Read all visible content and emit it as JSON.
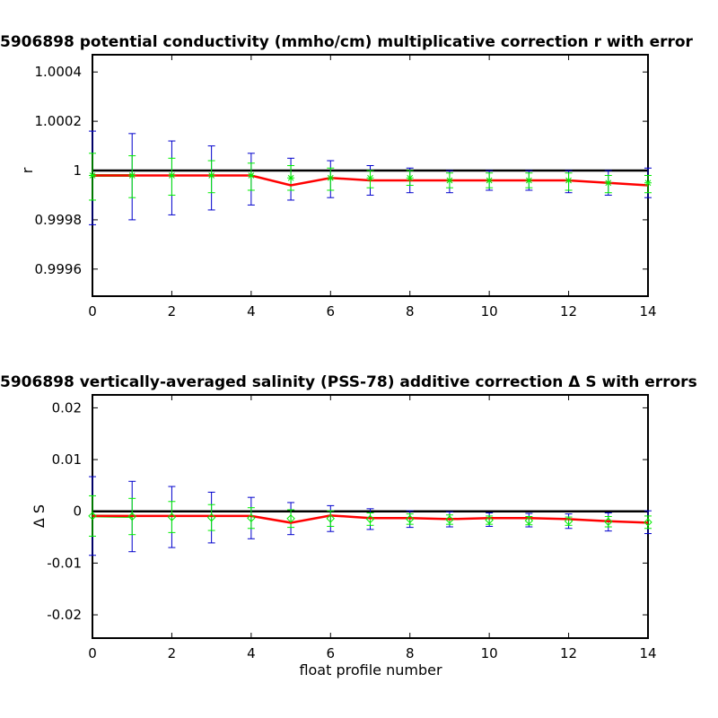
{
  "chart_data": [
    {
      "type": "line",
      "title": "5906898 potential conductivity (mmho/cm) multiplicative correction r with error",
      "xlabel": "",
      "ylabel": "r",
      "xlim": [
        0,
        14
      ],
      "ylim": [
        0.99949,
        1.00047
      ],
      "xticks": [
        "0",
        "2",
        "4",
        "6",
        "8",
        "10",
        "12",
        "14"
      ],
      "yticks": [
        "0.9996",
        "0.9998",
        "1",
        "1.0002",
        "1.0004"
      ],
      "ytick_values": [
        0.9996,
        0.9998,
        1.0,
        1.0002,
        1.0004
      ],
      "grid": false,
      "reference_line": 1.0,
      "x": [
        0,
        1,
        2,
        3,
        4,
        5,
        6,
        7,
        8,
        9,
        10,
        11,
        12,
        13,
        14
      ],
      "series": [
        {
          "role": "correction",
          "color": "#ff0000",
          "values": [
            0.99998,
            0.99998,
            0.99998,
            0.99998,
            0.99998,
            0.99994,
            0.99997,
            0.99996,
            0.99996,
            0.99996,
            0.99996,
            0.99996,
            0.99996,
            0.99995,
            0.99994
          ]
        },
        {
          "role": "fit-points",
          "color": "#00ee00",
          "marker": "asterisk",
          "values": [
            0.99998,
            0.99998,
            0.99998,
            0.99998,
            0.99998,
            0.99997,
            0.99997,
            0.99997,
            0.99997,
            0.99996,
            0.99996,
            0.99996,
            0.99996,
            0.99995,
            0.99995
          ]
        },
        {
          "role": "fit-error",
          "color": "#00ee00",
          "low": [
            0.99988,
            0.99989,
            0.9999,
            0.99991,
            0.99992,
            0.99992,
            0.99992,
            0.99993,
            0.99994,
            0.99993,
            0.99993,
            0.99993,
            0.99992,
            0.99991,
            0.99991
          ],
          "high": [
            1.00007,
            1.00006,
            1.00005,
            1.00004,
            1.00003,
            1.00002,
            1.00001,
            1.0,
            1.0,
            0.99999,
            0.99999,
            0.99999,
            0.99999,
            0.99998,
            0.99998
          ]
        },
        {
          "role": "total-error",
          "color": "#0000cc",
          "low": [
            0.99978,
            0.9998,
            0.99982,
            0.99984,
            0.99986,
            0.99988,
            0.99989,
            0.9999,
            0.99991,
            0.99991,
            0.99992,
            0.99992,
            0.99991,
            0.9999,
            0.99989
          ],
          "high": [
            1.00016,
            1.00015,
            1.00012,
            1.0001,
            1.00007,
            1.00005,
            1.00004,
            1.00002,
            1.00001,
            1.0,
            1.0,
            1.0,
            1.0,
            1.0,
            1.00001
          ]
        }
      ]
    },
    {
      "type": "line",
      "title": "5906898 vertically-averaged salinity (PSS-78) additive correction Δ S with errors",
      "xlabel": "float profile number",
      "ylabel": "Δ S",
      "xlim": [
        0,
        14
      ],
      "ylim": [
        -0.0245,
        0.0225
      ],
      "xticks": [
        "0",
        "2",
        "4",
        "6",
        "8",
        "10",
        "12",
        "14"
      ],
      "yticks": [
        "-0.02",
        "-0.01",
        "0",
        "0.01",
        "0.02"
      ],
      "ytick_values": [
        -0.02,
        -0.01,
        0,
        0.01,
        0.02
      ],
      "grid": false,
      "reference_line": 0,
      "x": [
        0,
        1,
        2,
        3,
        4,
        5,
        6,
        7,
        8,
        9,
        10,
        11,
        12,
        13,
        14
      ],
      "series": [
        {
          "role": "correction",
          "color": "#ff0000",
          "values": [
            -0.0009,
            -0.0009,
            -0.0009,
            -0.0009,
            -0.0009,
            -0.0022,
            -0.0008,
            -0.0013,
            -0.0013,
            -0.0015,
            -0.0013,
            -0.0013,
            -0.0015,
            -0.0019,
            -0.0022
          ]
        },
        {
          "role": "fit-points",
          "color": "#00ee00",
          "marker": "diamond",
          "values": [
            -0.0009,
            -0.001,
            -0.0011,
            -0.0012,
            -0.0013,
            -0.0014,
            -0.0014,
            -0.0015,
            -0.0015,
            -0.0016,
            -0.0017,
            -0.0018,
            -0.0019,
            -0.002,
            -0.0021
          ]
        },
        {
          "role": "fit-error",
          "color": "#00ee00",
          "low": [
            -0.0048,
            -0.0045,
            -0.0041,
            -0.0037,
            -0.0033,
            -0.0031,
            -0.0029,
            -0.0027,
            -0.0025,
            -0.0025,
            -0.0025,
            -0.0026,
            -0.0027,
            -0.003,
            -0.0033
          ],
          "high": [
            0.003,
            0.0025,
            0.0019,
            0.0013,
            0.0007,
            0.0003,
            0.0001,
            -0.0003,
            -0.0005,
            -0.0007,
            -0.0009,
            -0.001,
            -0.0011,
            -0.001,
            -0.0009
          ]
        },
        {
          "role": "total-error",
          "color": "#0000cc",
          "low": [
            -0.0085,
            -0.0078,
            -0.007,
            -0.0061,
            -0.0053,
            -0.0045,
            -0.0039,
            -0.0035,
            -0.0031,
            -0.003,
            -0.0029,
            -0.003,
            -0.0033,
            -0.0038,
            -0.0043
          ],
          "high": [
            0.0067,
            0.0058,
            0.0048,
            0.0037,
            0.0027,
            0.0017,
            0.0011,
            0.0005,
            0.0001,
            -0.0001,
            -0.0003,
            -0.0004,
            -0.0005,
            -0.0003,
            0.0001
          ]
        }
      ]
    }
  ]
}
